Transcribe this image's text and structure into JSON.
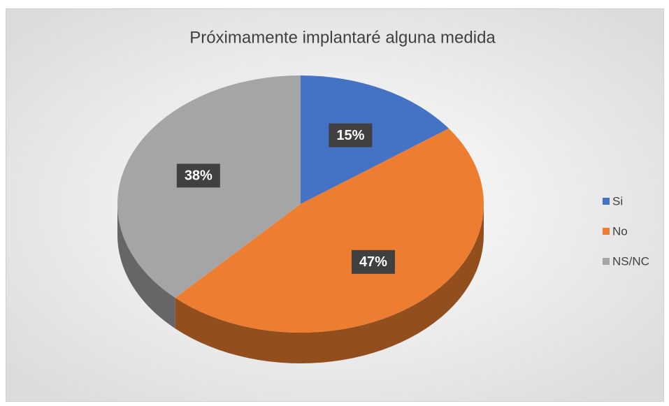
{
  "chart_data": {
    "type": "pie",
    "title": "Próximamente implantaré alguna medida",
    "categories": [
      "Si",
      "No",
      "NS/NC"
    ],
    "values": [
      15,
      47,
      38
    ],
    "value_labels": [
      "15%",
      "47%",
      "38%"
    ],
    "colors": [
      "#4472c4",
      "#ed7d31",
      "#a5a5a5"
    ],
    "legend": "right"
  }
}
